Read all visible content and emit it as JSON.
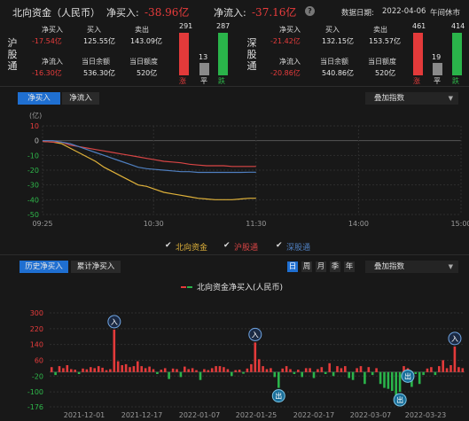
{
  "header": {
    "title": "北向资金（人民币）",
    "net_buy_label": "净买入:",
    "net_buy_value": "-38.96亿",
    "net_inflow_label": "净流入:",
    "net_inflow_value": "-37.16亿",
    "date_label": "数据日期:",
    "date_value": "2022-04-06",
    "status": "午间休市",
    "help_icon": "question-circle-icon"
  },
  "sh": {
    "title": "沪股通",
    "net_buy_label": "净买入",
    "net_buy": "-17.54亿",
    "buy_label": "买入",
    "buy": "125.55亿",
    "sell_label": "卖出",
    "sell": "143.09亿",
    "net_inflow_label": "净流入",
    "net_inflow": "-16.30亿",
    "balance_label": "当日余额",
    "balance": "536.30亿",
    "quota_label": "当日额度",
    "quota": "520亿",
    "up_count": "291",
    "flat_count": "13",
    "down_count": "287",
    "up_label": "涨",
    "flat_label": "平",
    "down_label": "跌"
  },
  "sz": {
    "title": "深股通",
    "net_buy_label": "净买入",
    "net_buy": "-21.42亿",
    "buy_label": "买入",
    "buy": "132.15亿",
    "sell_label": "卖出",
    "sell": "153.57亿",
    "net_inflow_label": "净流入",
    "net_inflow": "-20.86亿",
    "balance_label": "当日余额",
    "balance": "540.86亿",
    "quota_label": "当日额度",
    "quota": "520亿",
    "up_count": "461",
    "flat_count": "19",
    "down_count": "414",
    "up_label": "涨",
    "flat_label": "平",
    "down_label": "跌"
  },
  "intraday": {
    "tabs": [
      "净买入",
      "净流入"
    ],
    "active_tab": 0,
    "overlay_label": "叠加指数",
    "legend": [
      "北向资金",
      "沪股通",
      "深股通"
    ],
    "colors": {
      "north": "#e0b23a",
      "sh": "#d94545",
      "sz": "#4f7fc0"
    }
  },
  "history": {
    "tabs": [
      "历史净买入",
      "累计净买入"
    ],
    "active_tab": 0,
    "periods": [
      "日",
      "周",
      "月",
      "季",
      "年"
    ],
    "active_period": 0,
    "overlay_label": "叠加指数",
    "legend_label": "北向资金净买入(人民币)",
    "marker_in": "入",
    "marker_out": "出"
  },
  "chart_data": [
    {
      "type": "line",
      "yunit": "(亿)",
      "x_ticks": [
        "09:25",
        "10:30",
        "11:30",
        "14:00",
        "15:00"
      ],
      "y_ticks": [
        10,
        0,
        -10,
        -20,
        -30,
        -40,
        -50
      ],
      "ylim": [
        -50,
        10
      ],
      "x": [
        "09:25",
        "09:31",
        "09:36",
        "09:41",
        "09:46",
        "09:51",
        "09:56",
        "10:01",
        "10:06",
        "10:11",
        "10:16",
        "10:21",
        "10:26",
        "10:31",
        "10:36",
        "10:41",
        "10:46",
        "10:51",
        "10:56",
        "11:01",
        "11:06",
        "11:11",
        "11:16",
        "11:21",
        "11:26",
        "11:30"
      ],
      "series": [
        {
          "name": "北向资金",
          "values": [
            -0.5,
            -1,
            -2,
            -5,
            -8,
            -11,
            -14,
            -18,
            -21,
            -24,
            -27,
            -30,
            -31,
            -33,
            -35,
            -36,
            -37,
            -38,
            -39,
            -39.5,
            -40,
            -40,
            -40,
            -39.5,
            -39,
            -39
          ]
        },
        {
          "name": "沪股通",
          "values": [
            -0.5,
            -1,
            -1,
            -3,
            -4,
            -5,
            -6,
            -7,
            -8,
            -9,
            -10,
            -11,
            -12,
            -13,
            -14,
            -14.5,
            -15,
            -16,
            -16.5,
            -17,
            -17,
            -17,
            -17.5,
            -17.5,
            -17.5,
            -17.5
          ]
        },
        {
          "name": "深股通",
          "values": [
            0,
            0,
            -1,
            -2,
            -4,
            -6,
            -8,
            -10,
            -12,
            -14,
            -16,
            -18,
            -19,
            -19.5,
            -20,
            -20.5,
            -21,
            -21,
            -21.5,
            -21.5,
            -21.5,
            -21.5,
            -21.5,
            -21.5,
            -21.4,
            -21.4
          ]
        }
      ]
    },
    {
      "type": "bar",
      "y_ticks": [
        300,
        220,
        140,
        60,
        -20,
        -100,
        -176
      ],
      "ylim": [
        -176,
        300
      ],
      "x_ticks": [
        "2021-12-01",
        "2021-12-17",
        "2022-01-07",
        "2022-01-25",
        "2022-02-17",
        "2022-03-07",
        "2022-03-23"
      ],
      "values": [
        25,
        -15,
        30,
        20,
        35,
        15,
        12,
        -10,
        18,
        14,
        25,
        20,
        30,
        22,
        10,
        15,
        215,
        55,
        35,
        40,
        25,
        30,
        55,
        30,
        20,
        28,
        15,
        -10,
        12,
        20,
        -35,
        18,
        15,
        -25,
        28,
        15,
        20,
        10,
        -40,
        15,
        10,
        20,
        30,
        30,
        25,
        15,
        -20,
        10,
        12,
        -8,
        18,
        40,
        150,
        65,
        30,
        15,
        20,
        -25,
        -80,
        18,
        30,
        15,
        -10,
        12,
        -25,
        20,
        20,
        -30,
        15,
        25,
        -10,
        45,
        -20,
        30,
        20,
        30,
        -30,
        -40,
        20,
        30,
        -60,
        25,
        -15,
        20,
        -60,
        -80,
        -85,
        -95,
        -120,
        -100,
        30,
        20,
        -75,
        -10,
        -60,
        -15,
        18,
        25,
        -15,
        30,
        60,
        20,
        35,
        130,
        25,
        20
      ]
    }
  ]
}
